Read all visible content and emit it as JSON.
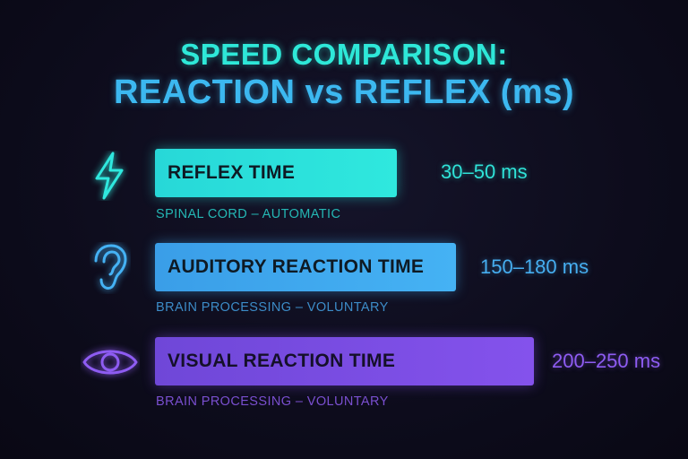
{
  "title": {
    "line1": "SPEED COMPARISON:",
    "line2": "REACTION vs REFLEX (ms)"
  },
  "colors": {
    "reflex": "#2fe8de",
    "auditory": "#45b2f4",
    "visual": "#8452ec"
  },
  "chart_data": {
    "type": "bar",
    "title": "SPEED COMPARISON: REACTION vs REFLEX (ms)",
    "categories": [
      "REFLEX TIME",
      "AUDITORY REACTION TIME",
      "VISUAL REACTION TIME"
    ],
    "series": [
      {
        "values": [
          [
            30,
            50
          ],
          [
            150,
            180
          ],
          [
            200,
            250
          ]
        ]
      }
    ],
    "value_labels": [
      "30–50 ms",
      "150–180 ms",
      "200–250 ms"
    ],
    "subtitles": [
      "SPINAL CORD – AUTOMATIC",
      "BRAIN PROCESSING – VOLUNTARY",
      "BRAIN PROCESSING – VOLUNTARY"
    ],
    "icons": [
      "lightning-icon",
      "ear-icon",
      "eye-icon"
    ]
  }
}
